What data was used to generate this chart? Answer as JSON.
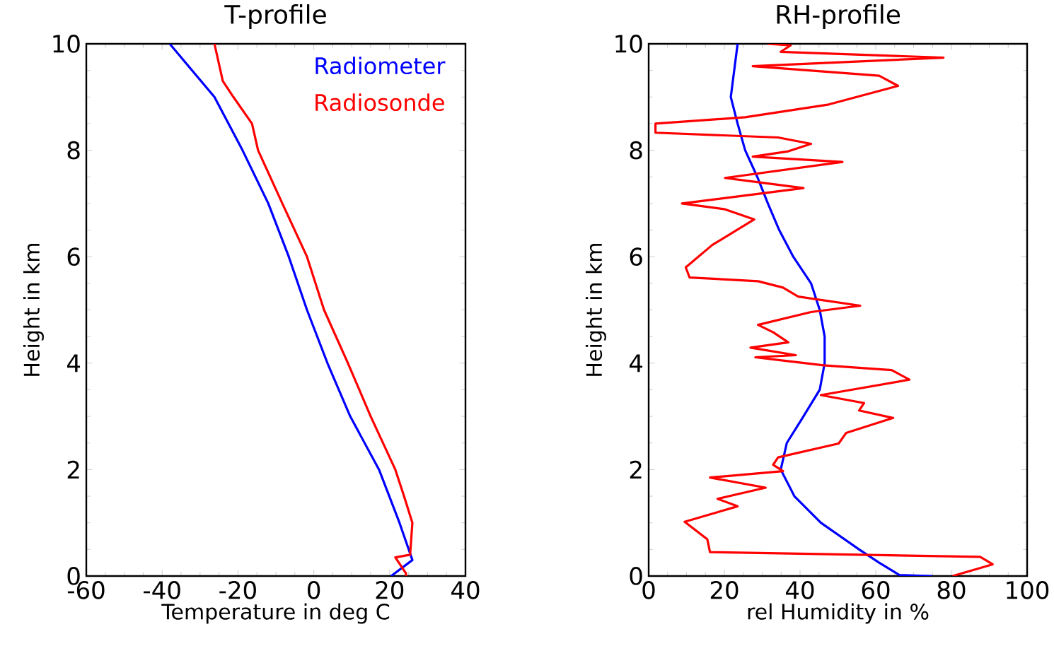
{
  "chart_data": [
    {
      "type": "line",
      "title": "T-profile",
      "xlabel": "Temperature in deg C",
      "ylabel": "Height in km",
      "xlim": [
        -60,
        40
      ],
      "ylim": [
        0,
        10
      ],
      "xticks": [
        -60,
        -40,
        -20,
        0,
        20,
        40
      ],
      "yticks": [
        0,
        2,
        4,
        6,
        8,
        10
      ],
      "legend": "top right",
      "series": [
        {
          "name": "Radiometer",
          "color": "#0000ff",
          "x": [
            20.4,
            26,
            22.6,
            17.2,
            9.6,
            3.6,
            -1.8,
            -6.6,
            -12,
            -18.8,
            -26.2,
            -38
          ],
          "values": [
            0,
            0.3,
            1,
            2,
            3,
            4,
            5,
            6,
            7,
            8,
            9,
            10
          ]
        },
        {
          "name": "Radiosonde",
          "color": "#ff0000",
          "x": [
            24.3,
            24.3,
            21.5,
            25.4,
            26,
            23.8,
            21.5,
            15,
            9,
            2.7,
            -1.8,
            -8.3,
            -14.7,
            -16.3,
            -21.2,
            -24,
            -26.2
          ],
          "values": [
            0,
            0.05,
            0.35,
            0.4,
            1,
            1.5,
            2,
            3,
            4,
            5,
            6,
            7,
            8,
            8.5,
            9,
            9.3,
            10
          ]
        }
      ]
    },
    {
      "type": "line",
      "title": "RH-profile",
      "xlabel": "rel Humidity in %",
      "ylabel": "Height in km",
      "xlim": [
        0,
        100
      ],
      "ylim": [
        0,
        10
      ],
      "xticks": [
        0,
        20,
        40,
        60,
        80,
        100
      ],
      "yticks": [
        0,
        2,
        4,
        6,
        8,
        10
      ],
      "series": [
        {
          "color": "#0000ff",
          "x": [
            74.9,
            66.2,
            60.9,
            55.6,
            45.5,
            38.5,
            34.9,
            36.5,
            40.9,
            45.2,
            46.5,
            46.5,
            45.2,
            42.9,
            38.2,
            34.5,
            31.5,
            28.7,
            25.5,
            23.5,
            21.7,
            23.5
          ],
          "values": [
            0,
            0.02,
            0.25,
            0.5,
            1,
            1.5,
            2,
            2.5,
            3,
            3.5,
            4,
            4.5,
            5,
            5.5,
            6,
            6.5,
            7,
            7.5,
            8,
            8.5,
            9,
            10
          ]
        },
        {
          "color": "#ff0000",
          "x": [
            80.3,
            90.9,
            87.6,
            16.2,
            15.5,
            9.5,
            23.5,
            18.2,
            30.9,
            16.2,
            35.5,
            32.9,
            34.2,
            50.2,
            52.2,
            64.6,
            55.6,
            56.9,
            45.5,
            68.9,
            64.2,
            46.2,
            28.2,
            38.9,
            26.9,
            36.9,
            32.9,
            28.9,
            42.9,
            55.9,
            39.5,
            35.5,
            28.9,
            10.8,
            9.8,
            16.8,
            27.9,
            20.2,
            8.8,
            40.9,
            20.2,
            51.2,
            27.5,
            36.9,
            42.9,
            34.2,
            1.8,
            1.8,
            25.5,
            47.6,
            65.9,
            60.9,
            27.5,
            77.9,
            34.9,
            37.5,
            31.5
          ],
          "values": [
            0,
            0.22,
            0.36,
            0.45,
            0.69,
            1.02,
            1.31,
            1.45,
            1.66,
            1.85,
            1.97,
            2.09,
            2.23,
            2.49,
            2.69,
            2.97,
            3.11,
            3.25,
            3.4,
            3.69,
            3.87,
            3.96,
            4.11,
            4.15,
            4.29,
            4.39,
            4.58,
            4.72,
            4.96,
            5.08,
            5.25,
            5.42,
            5.54,
            5.61,
            5.8,
            6.22,
            6.7,
            6.89,
            7.0,
            7.29,
            7.48,
            7.78,
            7.88,
            7.98,
            8.12,
            8.24,
            8.33,
            8.5,
            8.62,
            8.86,
            9.21,
            9.4,
            9.58,
            9.74,
            9.85,
            9.97,
            10
          ]
        }
      ]
    }
  ]
}
